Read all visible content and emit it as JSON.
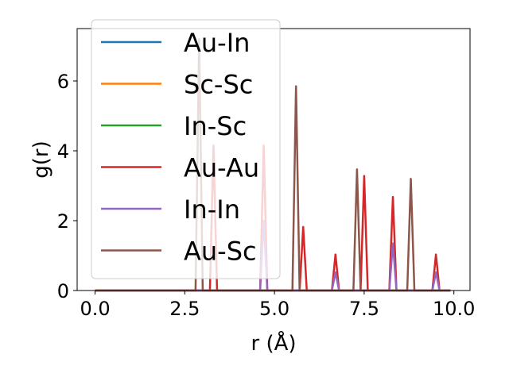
{
  "chart_data": {
    "type": "line",
    "title": "",
    "xlabel": "r (Å)",
    "ylabel": "g(r)",
    "xlim": [
      -0.5,
      10.45
    ],
    "ylim": [
      0,
      7.5
    ],
    "xticks": [
      0.0,
      2.5,
      5.0,
      7.5,
      10.0
    ],
    "xtick_labels": [
      "0.0",
      "2.5",
      "5.0",
      "7.5",
      "10.0"
    ],
    "yticks": [
      0,
      2,
      4,
      6
    ],
    "ytick_labels": [
      "0",
      "2",
      "4",
      "6"
    ],
    "grid": false,
    "legend_position": "upper left",
    "x_range": [
      0.0,
      9.9
    ],
    "series": [
      {
        "name": "Au-In",
        "color": "#1f77b4",
        "peaks": [
          {
            "r": 2.9,
            "g": 0.0
          }
        ]
      },
      {
        "name": "Sc-Sc",
        "color": "#ff7f0e",
        "peaks": [
          {
            "r": 3.3,
            "g": 0.0
          }
        ]
      },
      {
        "name": "In-Sc",
        "color": "#2ca02c",
        "peaks": [
          {
            "r": 2.9,
            "g": 0.0
          }
        ]
      },
      {
        "name": "Au-Au",
        "color": "#d62728",
        "peaks": [
          {
            "r": 3.3,
            "g": 4.15
          },
          {
            "r": 4.7,
            "g": 4.15
          },
          {
            "r": 5.8,
            "g": 1.82
          },
          {
            "r": 6.7,
            "g": 1.03
          },
          {
            "r": 7.5,
            "g": 3.28
          },
          {
            "r": 8.3,
            "g": 2.68
          },
          {
            "r": 9.5,
            "g": 1.03
          }
        ]
      },
      {
        "name": "In-In",
        "color": "#9467bd",
        "peaks": [
          {
            "r": 4.7,
            "g": 2.0
          },
          {
            "r": 6.7,
            "g": 0.52
          },
          {
            "r": 8.3,
            "g": 1.35
          },
          {
            "r": 9.5,
            "g": 0.52
          }
        ]
      },
      {
        "name": "Au-Sc",
        "color": "#8c564b",
        "peaks": [
          {
            "r": 2.9,
            "g": 7.2
          },
          {
            "r": 5.6,
            "g": 5.85
          },
          {
            "r": 7.3,
            "g": 3.47
          },
          {
            "r": 8.8,
            "g": 3.2
          }
        ]
      }
    ]
  }
}
